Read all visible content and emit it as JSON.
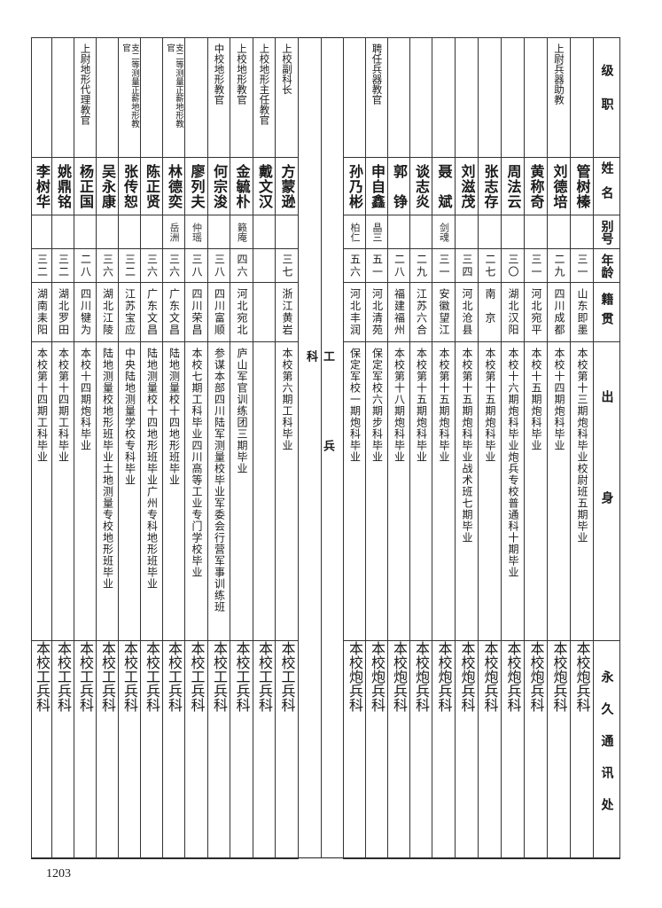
{
  "header": {
    "rank": "级职",
    "name": "姓名",
    "alias": "别号",
    "age": "年龄",
    "native": "籍贯",
    "origin": "出身",
    "address": "永久通讯处"
  },
  "right_block": {
    "rows": [
      {
        "rank": "",
        "name": "管树榛",
        "alias": "",
        "age": "三一",
        "native": "山东即墨",
        "origin": "本校第十三期炮科毕业校尉班五期毕业",
        "address": "本校炮兵科"
      },
      {
        "rank": "上尉兵器助教",
        "name": "刘德培",
        "alias": "",
        "age": "二九",
        "native": "四川成都",
        "origin": "本校十四期炮科毕业",
        "address": "本校炮兵科"
      },
      {
        "rank": "",
        "name": "黄称奇",
        "alias": "",
        "age": "三一",
        "native": "河北宛平",
        "origin": "本校十五期炮科毕业",
        "address": "本校炮兵科"
      },
      {
        "rank": "",
        "name": "周法云",
        "alias": "",
        "age": "三〇",
        "native": "湖北汉阳",
        "origin": "本校十六期炮科毕业炮兵专校普通科十期毕业",
        "address": "本校炮兵科"
      },
      {
        "rank": "",
        "name": "张志存",
        "alias": "",
        "age": "二七",
        "native": "南　京",
        "origin": "本校第十五期炮科毕业",
        "address": "本校炮兵科"
      },
      {
        "rank": "",
        "name": "刘滋茂",
        "alias": "",
        "age": "三四",
        "native": "河北沧县",
        "origin": "本校第十五期炮科毕业战术班七期毕业",
        "address": "本校炮兵科"
      },
      {
        "rank": "",
        "name": "聂　斌",
        "alias": "剑魂",
        "age": "三一",
        "native": "安徽望江",
        "origin": "本校第十五期炮科毕业",
        "address": "本校炮兵科"
      },
      {
        "rank": "",
        "name": "谈志炎",
        "alias": "",
        "age": "二九",
        "native": "江苏六合",
        "origin": "本校第十五期炮科毕业",
        "address": "本校炮兵科"
      },
      {
        "rank": "",
        "name": "郭　铮",
        "alias": "",
        "age": "二八",
        "native": "福建福州",
        "origin": "本校第十八期炮科毕业",
        "address": "本校炮兵科"
      },
      {
        "rank": "聘任兵器教官",
        "name": "申自鑫",
        "alias": "晶三",
        "age": "五一",
        "native": "河北清苑",
        "origin": "保定军校六期步科毕业",
        "address": "本校炮兵科"
      },
      {
        "rank": "",
        "name": "孙乃彬",
        "alias": "柏仁",
        "age": "五六",
        "native": "河北丰润",
        "origin": "保定军校一期炮科毕业",
        "address": "本校炮兵科"
      }
    ]
  },
  "left_block": {
    "section_label": "工兵科",
    "rows": [
      {
        "rank": "上校副科长",
        "name": "方蒙逊",
        "alias": "",
        "age": "三七",
        "native": "浙江黄岩",
        "origin": "本校第六期工科毕业",
        "address": "本校工兵科"
      },
      {
        "rank": "上校地形主任教官",
        "name": "戴文汉",
        "alias": "",
        "age": "",
        "native": "",
        "origin": "",
        "address": "本校工兵科"
      },
      {
        "rank": "上校地形教官",
        "name": "金毓朴",
        "alias": "籁庵",
        "age": "四六",
        "native": "河北宛北",
        "origin": "庐山军官训练团三期毕业",
        "address": "本校工兵科"
      },
      {
        "rank": "中校地形教官",
        "name": "何宗浚",
        "alias": "",
        "age": "三八",
        "native": "四川富顺",
        "origin": "参谋本部四川陆军测量校毕业军委会行营军事训练班",
        "address": "本校工兵科"
      },
      {
        "rank": "",
        "name": "廖列夫",
        "alias": "仲瑶",
        "age": "三八",
        "native": "四川荣昌",
        "origin": "本校七期工科毕业四川高等工业专门学校毕业",
        "address": "本校工兵科"
      },
      {
        "rank": "支二等测量正薪地形教官",
        "name": "林德奕",
        "alias": "岳洲",
        "age": "三六",
        "native": "广东文昌",
        "origin": "陆地测量校十四地形班毕业",
        "address": "本校工兵科"
      },
      {
        "rank": "",
        "name": "陈正贤",
        "alias": "",
        "age": "三六",
        "native": "广东文昌",
        "origin": "陆地测量校十四地形班毕业广州专科地形班毕业",
        "address": "本校工兵科"
      },
      {
        "rank": "支二等测量正薪地形教官",
        "name": "张传恕",
        "alias": "",
        "age": "三二",
        "native": "江苏宝应",
        "origin": "中央陆地测量学校专科毕业",
        "address": "本校工兵科"
      },
      {
        "rank": "",
        "name": "吴永康",
        "alias": "",
        "age": "三六",
        "native": "湖北江陵",
        "origin": "陆地测量校地形班毕业土地测量专校地形班毕业",
        "address": "本校工兵科"
      },
      {
        "rank": "上尉地形代理教官",
        "name": "杨正国",
        "alias": "",
        "age": "二八",
        "native": "四川犍为",
        "origin": "本校十四期炮科毕业",
        "address": "本校工兵科"
      },
      {
        "rank": "",
        "name": "姚鼎铭",
        "alias": "",
        "age": "三二",
        "native": "湖北罗田",
        "origin": "本校第十四期工科毕业",
        "address": "本校工兵科"
      },
      {
        "rank": "",
        "name": "李树华",
        "alias": "",
        "age": "三二",
        "native": "湖南耒阳",
        "origin": "本校第十四期工科毕业",
        "address": "本校工兵科"
      }
    ]
  },
  "footer": {
    "page_number": "1203"
  }
}
